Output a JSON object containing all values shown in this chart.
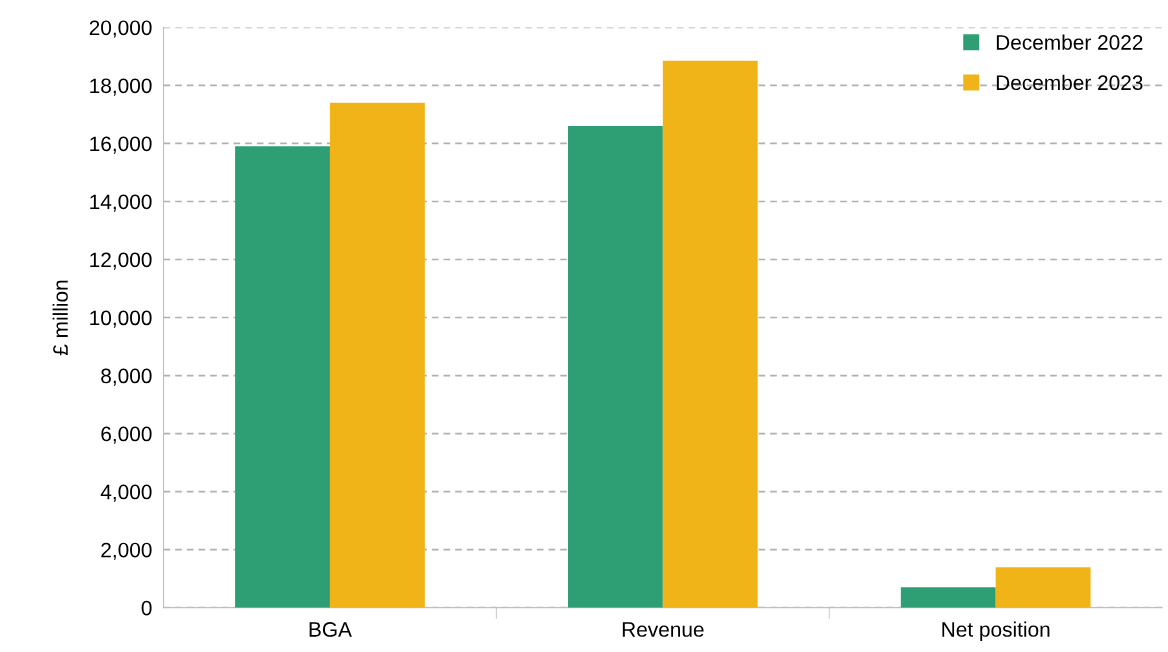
{
  "chart_data": {
    "type": "bar",
    "ylabel": "£ million",
    "categories": [
      "BGA",
      "Revenue",
      "Net position"
    ],
    "series": [
      {
        "name": "December 2022",
        "color": "#2e9e74",
        "values": [
          15900,
          16600,
          700
        ]
      },
      {
        "name": "December 2023",
        "color": "#f0b418",
        "values": [
          17400,
          18850,
          1390
        ]
      }
    ],
    "ylim": [
      0,
      20000
    ],
    "yticks": [
      {
        "value": 0,
        "label": "0"
      },
      {
        "value": 2000,
        "label": "2,000"
      },
      {
        "value": 4000,
        "label": "4,000"
      },
      {
        "value": 6000,
        "label": "6,000"
      },
      {
        "value": 8000,
        "label": "8,000"
      },
      {
        "value": 10000,
        "label": "10,000"
      },
      {
        "value": 12000,
        "label": "12,000"
      },
      {
        "value": 14000,
        "label": "14,000"
      },
      {
        "value": 16000,
        "label": "16,000"
      },
      {
        "value": 18000,
        "label": "18,000"
      },
      {
        "value": 20000,
        "label": "20,000"
      }
    ],
    "grid": "y",
    "legend": "top right"
  }
}
